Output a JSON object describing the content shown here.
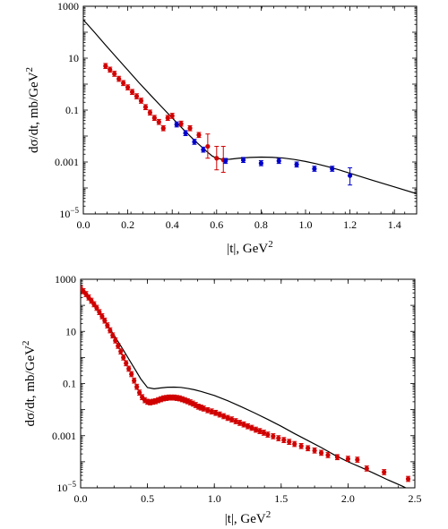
{
  "chart_data": [
    {
      "type": "scatter",
      "xlabel": "|t|, GeV",
      "xlabel_sup": "2",
      "ylabel": "dσ/dt, mb/GeV",
      "ylabel_sup": "2",
      "xlim": [
        0,
        1.5
      ],
      "ylim": [
        1e-05,
        1000
      ],
      "yscale": "log",
      "x_ticks": [
        "0.0",
        "0.2",
        "0.4",
        "0.6",
        "0.8",
        "1.0",
        "1.2",
        "1.4"
      ],
      "y_ticks": [
        {
          "base": "1000",
          "sup": ""
        },
        {
          "base": "10",
          "sup": ""
        },
        {
          "base": "0.1",
          "sup": ""
        },
        {
          "base": "0.001",
          "sup": ""
        },
        {
          "base": "10",
          "sup": "−5"
        }
      ],
      "curve": {
        "x": [
          0.0,
          0.05,
          0.1,
          0.15,
          0.2,
          0.25,
          0.3,
          0.35,
          0.4,
          0.45,
          0.5,
          0.55,
          0.58,
          0.6,
          0.63,
          0.66,
          0.7,
          0.75,
          0.8,
          0.85,
          0.9,
          0.95,
          1.0,
          1.05,
          1.1,
          1.15,
          1.2,
          1.3,
          1.4,
          1.5
        ],
        "y": [
          300,
          100,
          32,
          10.5,
          3.5,
          1.15,
          0.4,
          0.14,
          0.05,
          0.018,
          0.0068,
          0.0028,
          0.0017,
          0.0014,
          0.00125,
          0.00128,
          0.0014,
          0.0015,
          0.00155,
          0.00152,
          0.00142,
          0.00125,
          0.00105,
          0.00085,
          0.00066,
          0.0005,
          0.00037,
          0.0002,
          0.00011,
          6e-05
        ]
      },
      "series": [
        {
          "color": "#d00000",
          "marker": "circle-with-errorbars",
          "points": [
            {
              "x": 0.1,
              "y": 5.0
            },
            {
              "x": 0.12,
              "y": 3.6
            },
            {
              "x": 0.14,
              "y": 2.5
            },
            {
              "x": 0.16,
              "y": 1.6
            },
            {
              "x": 0.18,
              "y": 1.1
            },
            {
              "x": 0.2,
              "y": 0.75
            },
            {
              "x": 0.22,
              "y": 0.5
            },
            {
              "x": 0.24,
              "y": 0.34
            },
            {
              "x": 0.26,
              "y": 0.23
            },
            {
              "x": 0.28,
              "y": 0.13
            },
            {
              "x": 0.3,
              "y": 0.08
            },
            {
              "x": 0.32,
              "y": 0.05
            },
            {
              "x": 0.34,
              "y": 0.035
            },
            {
              "x": 0.36,
              "y": 0.02
            },
            {
              "x": 0.38,
              "y": 0.05
            },
            {
              "x": 0.4,
              "y": 0.06
            },
            {
              "x": 0.44,
              "y": 0.03
            },
            {
              "x": 0.48,
              "y": 0.02
            },
            {
              "x": 0.52,
              "y": 0.011
            },
            {
              "x": 0.56,
              "y": 0.004,
              "err_lo": 0.0014,
              "err_hi": 0.012
            },
            {
              "x": 0.6,
              "y": 0.0014,
              "err_lo": 0.0005,
              "err_hi": 0.004
            },
            {
              "x": 0.63,
              "y": 0.0012,
              "err_lo": 0.0004,
              "err_hi": 0.004
            }
          ]
        },
        {
          "color": "#0000cc",
          "marker": "circle-with-errorbars",
          "points": [
            {
              "x": 0.42,
              "y": 0.028
            },
            {
              "x": 0.46,
              "y": 0.013
            },
            {
              "x": 0.5,
              "y": 0.006
            },
            {
              "x": 0.54,
              "y": 0.003
            },
            {
              "x": 0.64,
              "y": 0.0011
            },
            {
              "x": 0.72,
              "y": 0.0012
            },
            {
              "x": 0.8,
              "y": 0.0009
            },
            {
              "x": 0.88,
              "y": 0.0011
            },
            {
              "x": 0.96,
              "y": 0.0008
            },
            {
              "x": 1.04,
              "y": 0.00055
            },
            {
              "x": 1.12,
              "y": 0.00055
            },
            {
              "x": 1.2,
              "y": 0.0003,
              "err_lo": 0.00013,
              "err_hi": 0.0006
            }
          ]
        }
      ]
    },
    {
      "type": "scatter",
      "xlabel": "|t|, GeV",
      "xlabel_sup": "2",
      "ylabel": "dσ/dt, mb/GeV",
      "ylabel_sup": "2",
      "xlim": [
        0,
        2.5
      ],
      "ylim": [
        1e-05,
        1000
      ],
      "yscale": "log",
      "x_ticks": [
        "0.0",
        "0.5",
        "1.0",
        "1.5",
        "2.0",
        "2.5"
      ],
      "y_ticks": [
        {
          "base": "1000",
          "sup": ""
        },
        {
          "base": "10",
          "sup": ""
        },
        {
          "base": "0.1",
          "sup": ""
        },
        {
          "base": "0.001",
          "sup": ""
        },
        {
          "base": "10",
          "sup": "−5"
        }
      ],
      "curve": {
        "x": [
          0.0,
          0.1,
          0.2,
          0.3,
          0.4,
          0.45,
          0.5,
          0.55,
          0.6,
          0.65,
          0.7,
          0.75,
          0.8,
          0.85,
          0.9,
          1.0,
          1.1,
          1.2,
          1.3,
          1.4,
          1.5,
          1.6,
          1.7,
          1.8,
          1.9,
          2.0,
          2.1,
          2.2,
          2.3,
          2.4,
          2.45
        ],
        "y": [
          500,
          100,
          18,
          2.8,
          0.4,
          0.15,
          0.07,
          0.063,
          0.068,
          0.072,
          0.073,
          0.071,
          0.065,
          0.058,
          0.05,
          0.035,
          0.022,
          0.013,
          0.0075,
          0.0042,
          0.0023,
          0.0012,
          0.00065,
          0.00035,
          0.00018,
          0.0001,
          6e-05,
          3.5e-05,
          2e-05,
          1.2e-05,
          9e-06
        ]
      },
      "series": [
        {
          "color": "#d00000",
          "marker": "circle-with-errorbars",
          "points": [
            {
              "x": 0.0,
              "y": 450
            },
            {
              "x": 0.02,
              "y": 350
            },
            {
              "x": 0.04,
              "y": 270
            },
            {
              "x": 0.06,
              "y": 200
            },
            {
              "x": 0.08,
              "y": 150
            },
            {
              "x": 0.1,
              "y": 110
            },
            {
              "x": 0.12,
              "y": 80
            },
            {
              "x": 0.14,
              "y": 55
            },
            {
              "x": 0.16,
              "y": 38
            },
            {
              "x": 0.18,
              "y": 26
            },
            {
              "x": 0.2,
              "y": 17
            },
            {
              "x": 0.22,
              "y": 11
            },
            {
              "x": 0.24,
              "y": 7
            },
            {
              "x": 0.26,
              "y": 4.5
            },
            {
              "x": 0.28,
              "y": 2.8
            },
            {
              "x": 0.3,
              "y": 1.7
            },
            {
              "x": 0.32,
              "y": 1.0
            },
            {
              "x": 0.34,
              "y": 0.6
            },
            {
              "x": 0.36,
              "y": 0.37
            },
            {
              "x": 0.38,
              "y": 0.23
            },
            {
              "x": 0.4,
              "y": 0.13
            },
            {
              "x": 0.42,
              "y": 0.075
            },
            {
              "x": 0.44,
              "y": 0.045
            },
            {
              "x": 0.46,
              "y": 0.03
            },
            {
              "x": 0.48,
              "y": 0.023
            },
            {
              "x": 0.5,
              "y": 0.02
            },
            {
              "x": 0.52,
              "y": 0.019
            },
            {
              "x": 0.54,
              "y": 0.02
            },
            {
              "x": 0.56,
              "y": 0.021
            },
            {
              "x": 0.58,
              "y": 0.023
            },
            {
              "x": 0.6,
              "y": 0.025
            },
            {
              "x": 0.62,
              "y": 0.027
            },
            {
              "x": 0.64,
              "y": 0.028
            },
            {
              "x": 0.66,
              "y": 0.029
            },
            {
              "x": 0.68,
              "y": 0.029
            },
            {
              "x": 0.7,
              "y": 0.029
            },
            {
              "x": 0.72,
              "y": 0.028
            },
            {
              "x": 0.74,
              "y": 0.027
            },
            {
              "x": 0.76,
              "y": 0.025
            },
            {
              "x": 0.78,
              "y": 0.023
            },
            {
              "x": 0.8,
              "y": 0.021
            },
            {
              "x": 0.82,
              "y": 0.019
            },
            {
              "x": 0.84,
              "y": 0.017
            },
            {
              "x": 0.86,
              "y": 0.015
            },
            {
              "x": 0.88,
              "y": 0.013
            },
            {
              "x": 0.9,
              "y": 0.012
            },
            {
              "x": 0.92,
              "y": 0.011
            },
            {
              "x": 0.95,
              "y": 0.0095
            },
            {
              "x": 0.98,
              "y": 0.0085
            },
            {
              "x": 1.01,
              "y": 0.0075
            },
            {
              "x": 1.04,
              "y": 0.0065
            },
            {
              "x": 1.07,
              "y": 0.0056
            },
            {
              "x": 1.1,
              "y": 0.0048
            },
            {
              "x": 1.13,
              "y": 0.0042
            },
            {
              "x": 1.16,
              "y": 0.0036
            },
            {
              "x": 1.19,
              "y": 0.0031
            },
            {
              "x": 1.22,
              "y": 0.0027
            },
            {
              "x": 1.25,
              "y": 0.0023
            },
            {
              "x": 1.28,
              "y": 0.002
            },
            {
              "x": 1.31,
              "y": 0.0017
            },
            {
              "x": 1.34,
              "y": 0.0015
            },
            {
              "x": 1.37,
              "y": 0.0013
            },
            {
              "x": 1.4,
              "y": 0.0011
            },
            {
              "x": 1.44,
              "y": 0.00095
            },
            {
              "x": 1.48,
              "y": 0.0008
            },
            {
              "x": 1.52,
              "y": 0.00068
            },
            {
              "x": 1.56,
              "y": 0.00058
            },
            {
              "x": 1.6,
              "y": 0.00048
            },
            {
              "x": 1.65,
              "y": 0.0004
            },
            {
              "x": 1.7,
              "y": 0.00033
            },
            {
              "x": 1.75,
              "y": 0.00027
            },
            {
              "x": 1.8,
              "y": 0.00022
            },
            {
              "x": 1.85,
              "y": 0.00018
            },
            {
              "x": 1.92,
              "y": 0.00015
            },
            {
              "x": 2.0,
              "y": 0.00013
            },
            {
              "x": 2.07,
              "y": 0.00012
            },
            {
              "x": 2.14,
              "y": 5.5e-05
            },
            {
              "x": 2.27,
              "y": 4e-05
            },
            {
              "x": 2.45,
              "y": 2.2e-05
            }
          ]
        }
      ]
    }
  ]
}
